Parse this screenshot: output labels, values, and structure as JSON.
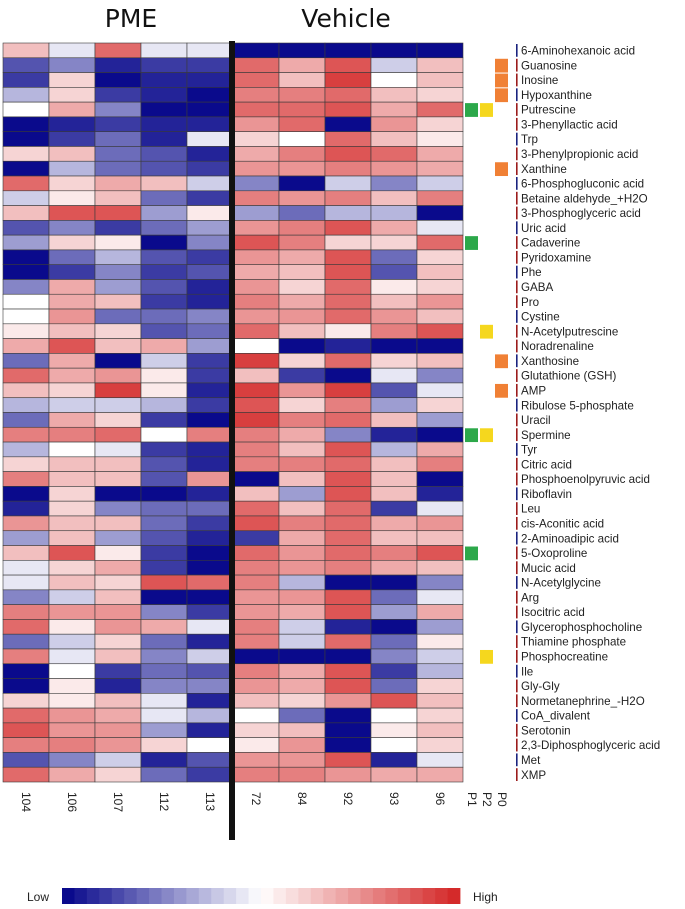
{
  "chart_data": {
    "type": "heatmap",
    "group_titles": [
      "PME",
      "Vehicle"
    ],
    "groups": [
      {
        "name": "PME",
        "columns": [
          "104",
          "106",
          "107",
          "112",
          "113"
        ]
      },
      {
        "name": "Vehicle",
        "columns": [
          "72",
          "84",
          "92",
          "93",
          "96"
        ]
      }
    ],
    "columns": [
      "104",
      "106",
      "107",
      "112",
      "113",
      "72",
      "84",
      "92",
      "93",
      "96"
    ],
    "rows": [
      "6-Aminohexanoic acid",
      "Guanosine",
      "Inosine",
      "Hypoxanthine",
      "Putrescine",
      "3-Phenyllactic acid",
      "Trp",
      "3-Phenylpropionic acid",
      "Xanthine",
      "6-Phosphogluconic acid",
      "Betaine aldehyde_+H2O",
      "3-Phosphoglyceric acid",
      "Uric acid",
      "Cadaverine",
      "Pyridoxamine",
      "Phe",
      "GABA",
      "Pro",
      "Cystine",
      "N-Acetylputrescine",
      "Noradrenaline",
      "Xanthosine",
      "Glutathione (GSH)",
      "AMP",
      "Ribulose 5-phosphate",
      "Uracil",
      "Spermine",
      "Tyr",
      "Citric acid",
      "Phosphoenolpyruvic acid",
      "Riboflavin",
      "Leu",
      "cis-Aconitic acid",
      "2-Aminoadipic acid",
      "5-Oxoproline",
      "Mucic acid",
      "N-Acetylglycine",
      "Arg",
      "Isocitric acid",
      "Glycerophosphocholine",
      "Thiamine phosphate",
      "Phosphocreatine",
      "Ile",
      "Gly-Gly",
      "Normetanephrine_-H2O",
      "CoA_divalent",
      "Serotonin",
      "2,3-Diphosphoglyceric acid",
      "Met",
      "XMP"
    ],
    "values": [
      [
        0.3,
        -0.1,
        0.7,
        -0.1,
        -0.1,
        -1,
        -1,
        -1,
        -1,
        -1
      ],
      [
        -0.7,
        -0.5,
        -0.9,
        -0.8,
        -0.8,
        0.7,
        0.4,
        0.8,
        -0.2,
        0.3
      ],
      [
        -0.8,
        0.2,
        -1,
        -0.9,
        -0.9,
        0.7,
        0.3,
        0.9,
        0,
        0.3
      ],
      [
        -0.3,
        0.2,
        -0.8,
        -0.9,
        -1,
        0.6,
        0.6,
        0.7,
        0.3,
        0.2
      ],
      [
        0,
        0.4,
        -0.5,
        -1,
        -1,
        0.7,
        0.7,
        0.8,
        0.4,
        0.7
      ],
      [
        -1,
        -0.9,
        -0.8,
        -0.9,
        -0.9,
        0.5,
        0.7,
        -1,
        0.5,
        0.2
      ],
      [
        -1,
        -0.8,
        -0.6,
        -0.9,
        -0.1,
        0.2,
        0,
        0.7,
        0.3,
        0.1
      ],
      [
        0.2,
        0.3,
        -0.6,
        -0.7,
        -0.9,
        0.4,
        0.6,
        0.8,
        0.7,
        0.4
      ],
      [
        -1,
        -0.3,
        -0.6,
        -0.7,
        -0.8,
        0.5,
        0.5,
        0.6,
        0.5,
        0.4
      ],
      [
        0.7,
        0.2,
        0.4,
        0.3,
        -0.2,
        -0.5,
        -1,
        -0.2,
        -0.5,
        -0.2
      ],
      [
        -0.2,
        0.1,
        0.3,
        -0.6,
        -0.8,
        0.6,
        0.5,
        0.6,
        0.3,
        0.6
      ],
      [
        0.3,
        0.8,
        0.8,
        -0.4,
        0.1,
        -0.4,
        -0.6,
        -0.3,
        -0.3,
        -1
      ],
      [
        -0.7,
        -0.5,
        -0.8,
        -0.6,
        -0.4,
        0.5,
        0.6,
        0.8,
        0.4,
        -0.1
      ],
      [
        -0.4,
        0.2,
        0.1,
        -1,
        -0.5,
        0.8,
        0.6,
        0.2,
        0.2,
        0.7
      ],
      [
        -1,
        -0.6,
        -0.3,
        -0.7,
        -0.8,
        0.5,
        0.4,
        0.8,
        -0.6,
        0.2
      ],
      [
        -1,
        -0.8,
        -0.5,
        -0.8,
        -0.7,
        0.4,
        0.3,
        0.8,
        -0.7,
        0.3
      ],
      [
        -0.5,
        0.4,
        -0.4,
        -0.7,
        -0.9,
        0.5,
        0.2,
        0.7,
        0.1,
        0.2
      ],
      [
        0,
        0.4,
        0.3,
        -0.8,
        -0.9,
        0.6,
        0.4,
        0.7,
        0.3,
        0.5
      ],
      [
        0,
        0.5,
        -0.6,
        -0.6,
        -0.5,
        0.5,
        0.5,
        0.7,
        0.5,
        0.3
      ],
      [
        0.1,
        0.3,
        0.2,
        -0.7,
        -0.6,
        0.7,
        0.3,
        0.1,
        0.6,
        0.8
      ],
      [
        0.4,
        0.8,
        0.3,
        0.4,
        -0.4,
        0,
        -1,
        -0.9,
        -1,
        -1
      ],
      [
        -0.6,
        0.4,
        -1,
        -0.2,
        -0.8,
        0.9,
        0.2,
        0.7,
        0.2,
        0.3
      ],
      [
        0.7,
        0.4,
        0.5,
        0.1,
        -0.8,
        0.3,
        -0.8,
        -1,
        -0.1,
        -0.5
      ],
      [
        0.3,
        0.2,
        0.9,
        0.1,
        -0.9,
        0.9,
        0.5,
        0.9,
        -0.7,
        -0.1
      ],
      [
        -0.3,
        -0.2,
        -0.2,
        -0.3,
        -0.8,
        0.8,
        0.2,
        0.6,
        -0.4,
        0.2
      ],
      [
        -0.6,
        0.4,
        0.2,
        -0.8,
        -1,
        0.9,
        0.6,
        0.7,
        0.3,
        -0.4
      ],
      [
        0.6,
        0.6,
        0.7,
        0,
        0.6,
        0.6,
        0.4,
        -0.5,
        -0.9,
        -1
      ],
      [
        -0.3,
        0,
        -0.1,
        -0.8,
        -0.9,
        0.6,
        0.3,
        0.8,
        -0.3,
        0.4
      ],
      [
        0.2,
        0.3,
        0.3,
        -0.7,
        -0.9,
        0.6,
        0.6,
        0.7,
        0.3,
        0.6
      ],
      [
        0.6,
        0.3,
        0.3,
        -0.7,
        0.5,
        -1,
        0.3,
        0.8,
        0.3,
        -1
      ],
      [
        -1,
        0.2,
        -1,
        -1,
        -0.9,
        0.3,
        -0.4,
        0.8,
        0.3,
        -0.9
      ],
      [
        -0.9,
        0.2,
        -0.5,
        -0.6,
        -0.6,
        0.7,
        0.3,
        0.7,
        -0.8,
        -0.1
      ],
      [
        0.5,
        0.3,
        0.3,
        -0.6,
        -0.8,
        0.8,
        0.6,
        0.7,
        0.4,
        0.5
      ],
      [
        -0.4,
        0.3,
        -0.4,
        -0.7,
        -0.9,
        -0.8,
        0.4,
        0.7,
        0.3,
        0.3
      ],
      [
        0.3,
        0.8,
        0.1,
        -0.8,
        -1,
        0.7,
        0.5,
        0.7,
        0.6,
        0.8
      ],
      [
        -0.1,
        0.2,
        0.4,
        -0.8,
        -1,
        0.6,
        0.5,
        0.6,
        0.4,
        0.3
      ],
      [
        -0.1,
        0.3,
        0.2,
        0.8,
        0.7,
        0.6,
        -0.3,
        -1,
        -1,
        -0.5
      ],
      [
        -0.5,
        -0.2,
        0.3,
        -1,
        -1,
        0.5,
        0.5,
        0.8,
        -0.6,
        -0.1
      ],
      [
        0.6,
        0.5,
        0.5,
        -0.5,
        -0.8,
        0.5,
        0.4,
        0.8,
        -0.4,
        0.4
      ],
      [
        0.7,
        0.1,
        0.5,
        0.4,
        -0.1,
        0.6,
        -0.2,
        -0.9,
        -1,
        -0.4
      ],
      [
        -0.6,
        -0.2,
        0.2,
        -0.6,
        -0.9,
        0.6,
        -0.2,
        0.7,
        -0.6,
        0.1
      ],
      [
        0.6,
        -0.1,
        0.3,
        -0.5,
        -0.2,
        -1,
        -1,
        -1,
        -0.5,
        -0.2
      ],
      [
        -1,
        0,
        -0.8,
        -0.6,
        -0.7,
        0.6,
        0.4,
        0.8,
        -0.8,
        -0.3
      ],
      [
        -1,
        0.1,
        -0.9,
        -0.5,
        -0.5,
        0.5,
        0.4,
        0.8,
        -0.6,
        0.2
      ],
      [
        0.2,
        0.1,
        0.3,
        -0.1,
        -0.9,
        0.3,
        0.2,
        0.5,
        0.8,
        0.3
      ],
      [
        0.7,
        0.5,
        0.4,
        -0.1,
        -0.3,
        0,
        -0.6,
        -1,
        0,
        0.2
      ],
      [
        0.8,
        0.5,
        0.5,
        -0.4,
        -0.9,
        0.2,
        0.3,
        -1,
        0.1,
        0.3
      ],
      [
        0.6,
        0.6,
        0.5,
        0.2,
        0,
        0.1,
        0.5,
        -1,
        0,
        0.2
      ],
      [
        -0.7,
        -0.5,
        -0.2,
        -0.9,
        -0.7,
        0.5,
        0.5,
        0.8,
        -0.9,
        -0.1
      ],
      [
        0.7,
        0.4,
        0.2,
        -0.6,
        -0.8,
        0.6,
        0.6,
        0.5,
        0.4,
        0.4
      ]
    ],
    "annotation_columns": [
      "P1",
      "P2",
      "P0"
    ],
    "annotation_colors": {
      "P1": "#2ca84a",
      "P2": "#f5d71e",
      "P0": "#f08035"
    },
    "annotations": [
      {
        "row": "Guanosine",
        "marks": [
          "P0"
        ]
      },
      {
        "row": "Inosine",
        "marks": [
          "P0"
        ]
      },
      {
        "row": "Hypoxanthine",
        "marks": [
          "P0"
        ]
      },
      {
        "row": "Putrescine",
        "marks": [
          "P1",
          "P2"
        ]
      },
      {
        "row": "Xanthine",
        "marks": [
          "P0"
        ]
      },
      {
        "row": "Cadaverine",
        "marks": [
          "P1"
        ]
      },
      {
        "row": "N-Acetylputrescine",
        "marks": [
          "P2"
        ]
      },
      {
        "row": "Xanthosine",
        "marks": [
          "P0"
        ]
      },
      {
        "row": "AMP",
        "marks": [
          "P0"
        ]
      },
      {
        "row": "Spermine",
        "marks": [
          "P1",
          "P2"
        ]
      },
      {
        "row": "5-Oxoproline",
        "marks": [
          "P1"
        ]
      },
      {
        "row": "Phosphocreatine",
        "marks": [
          "P2"
        ]
      }
    ],
    "legend": {
      "low_label": "Low",
      "high_label": "High",
      "low_color": "#0a0a8c",
      "mid_color": "#ffffff",
      "high_color": "#d42a2a"
    },
    "grid": true
  }
}
